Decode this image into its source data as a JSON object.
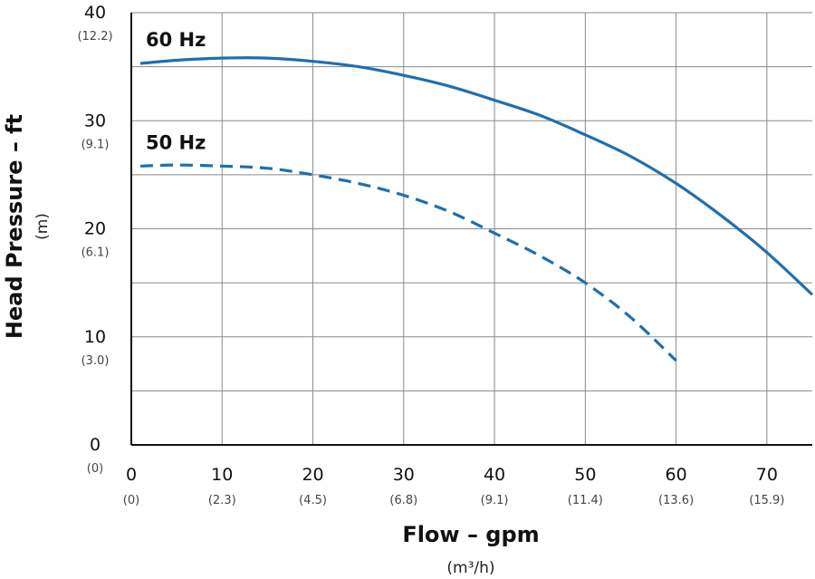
{
  "chart_data": {
    "type": "line",
    "xlabel": "Flow – gpm",
    "xlabel_units": "(m³/h)",
    "ylabel": "Head Pressure – ft",
    "ylabel_units": "(m)",
    "xlim": [
      0,
      75
    ],
    "ylim": [
      0,
      40
    ],
    "grid": true,
    "x_ticks": [
      {
        "value": 0,
        "label": "0",
        "sub": "(0)"
      },
      {
        "value": 10,
        "label": "10",
        "sub": "(2.3)"
      },
      {
        "value": 20,
        "label": "20",
        "sub": "(4.5)"
      },
      {
        "value": 30,
        "label": "30",
        "sub": "(6.8)"
      },
      {
        "value": 40,
        "label": "40",
        "sub": "(9.1)"
      },
      {
        "value": 50,
        "label": "50",
        "sub": "(11.4)"
      },
      {
        "value": 60,
        "label": "60",
        "sub": "(13.6)"
      },
      {
        "value": 70,
        "label": "70",
        "sub": "(15.9)"
      }
    ],
    "y_ticks": [
      {
        "value": 0,
        "label": "0",
        "sub": "(0)"
      },
      {
        "value": 10,
        "label": "10",
        "sub": "(3.0)"
      },
      {
        "value": 20,
        "label": "20",
        "sub": "(6.1)"
      },
      {
        "value": 30,
        "label": "30",
        "sub": "(9.1)"
      },
      {
        "value": 40,
        "label": "40",
        "sub": "(12.2)"
      }
    ],
    "y_minor_grid": [
      5,
      15,
      25,
      35
    ],
    "series": [
      {
        "name": "60 Hz",
        "style": "solid",
        "color": "#1f6fae",
        "x": [
          1,
          5,
          10,
          15,
          20,
          25,
          30,
          35,
          40,
          45,
          50,
          55,
          60,
          65,
          70,
          75
        ],
        "y": [
          35.3,
          35.6,
          35.8,
          35.8,
          35.5,
          35.0,
          34.2,
          33.2,
          31.9,
          30.5,
          28.7,
          26.7,
          24.2,
          21.2,
          17.8,
          13.9
        ]
      },
      {
        "name": "50 Hz",
        "style": "dashed",
        "color": "#1f6fae",
        "x": [
          1,
          5,
          10,
          15,
          20,
          25,
          30,
          35,
          40,
          45,
          50,
          55,
          60
        ],
        "y": [
          25.8,
          25.9,
          25.8,
          25.6,
          25.0,
          24.2,
          23.1,
          21.6,
          19.6,
          17.5,
          15.0,
          11.8,
          7.8
        ]
      }
    ]
  }
}
